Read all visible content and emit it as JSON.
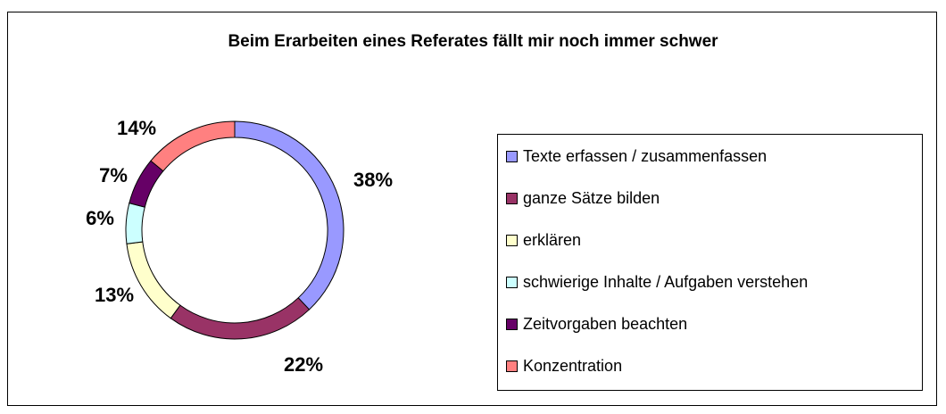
{
  "chart_data": {
    "type": "donut",
    "title": "Beim Erarbeiten eines Referates fällt mir noch immer schwer",
    "categories": [
      "Texte erfassen / zusammenfassen",
      "ganze Sätze bilden",
      "erklären",
      "schwierige Inhalte / Aufgaben verstehen",
      "Zeitvorgaben beachten",
      "Konzentration"
    ],
    "values": [
      38,
      22,
      13,
      6,
      7,
      14
    ],
    "value_labels": [
      "38%",
      "22%",
      "13%",
      "6%",
      "7%",
      "14%"
    ],
    "colors": [
      "#9999ff",
      "#993366",
      "#ffffcc",
      "#ccffff",
      "#660066",
      "#ff8080"
    ],
    "legend": "right"
  }
}
